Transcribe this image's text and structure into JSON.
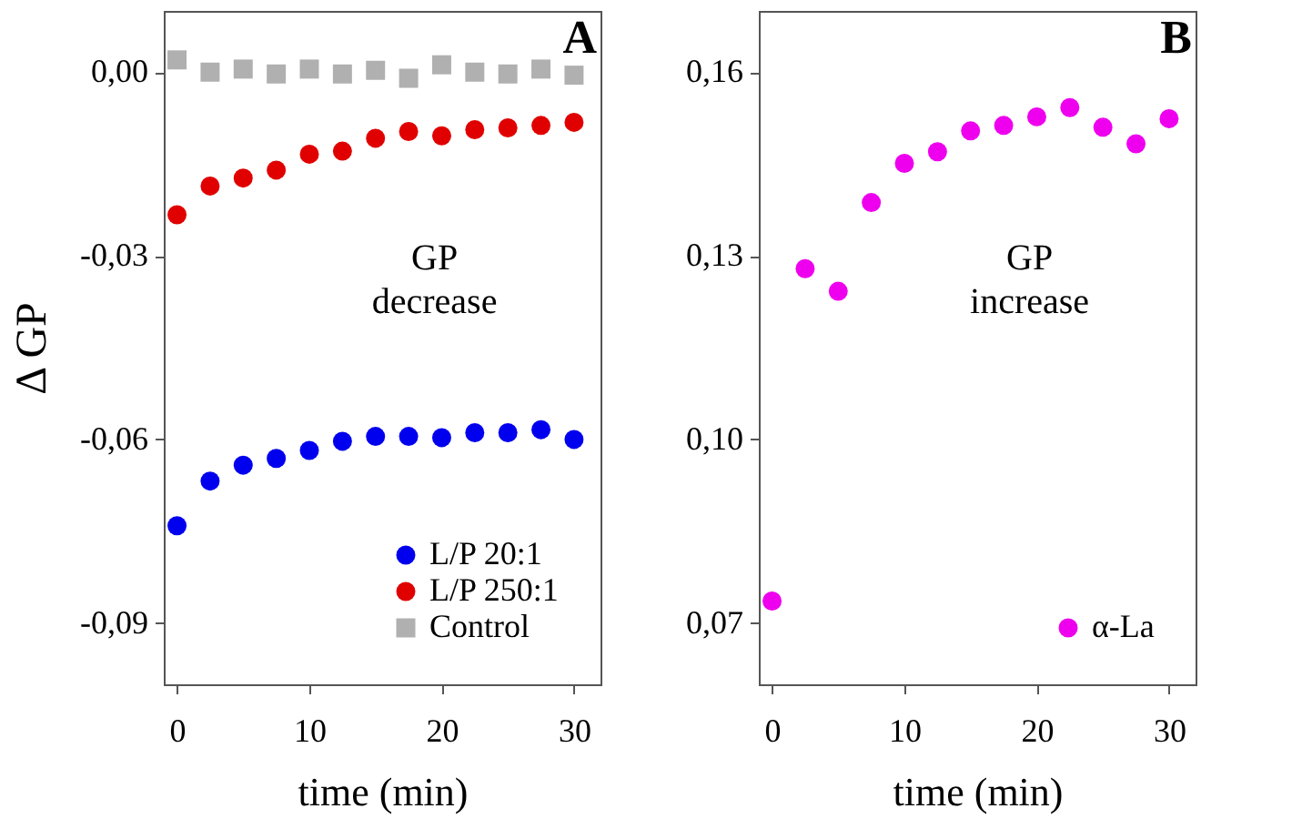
{
  "chart_data": [
    {
      "type": "scatter",
      "xlabel": "time (min)",
      "ylabel": "Δ GP",
      "x": [
        0,
        2.5,
        5,
        7.5,
        10,
        12.5,
        15,
        17.5,
        20,
        22.5,
        25,
        27.5,
        30
      ],
      "series": [
        {
          "name": "L/P 20:1",
          "color": "#0000ee",
          "marker": "circle",
          "values": [
            -0.0741,
            -0.0668,
            -0.0642,
            -0.0631,
            -0.0618,
            -0.0603,
            -0.0595,
            -0.0595,
            -0.0597,
            -0.0589,
            -0.0589,
            -0.0584,
            -0.06
          ]
        },
        {
          "name": "L/P 250:1",
          "color": "#e00000",
          "marker": "circle",
          "values": [
            -0.0233,
            -0.0186,
            -0.0173,
            -0.016,
            -0.0134,
            -0.0129,
            -0.0108,
            -0.0097,
            -0.0104,
            -0.0094,
            -0.0091,
            -0.0087,
            -0.0082
          ]
        },
        {
          "name": "Control",
          "color": "#b0b0b0",
          "marker": "square",
          "values": [
            0.002,
            0.0,
            0.0005,
            -0.0003,
            0.0005,
            -0.0003,
            0.0003,
            -0.001,
            0.0012,
            0.0,
            -0.0003,
            0.0005,
            -0.0005
          ]
        }
      ],
      "xlim": [
        -1,
        32
      ],
      "xticks": [
        0,
        10,
        20,
        30
      ],
      "ylim": [
        -0.1,
        0.01
      ],
      "yticks": [
        {
          "value": 0,
          "label": "0,00"
        },
        {
          "value": -0.03,
          "label": "-0,03"
        },
        {
          "value": -0.06,
          "label": "-0,06"
        },
        {
          "value": -0.09,
          "label": "-0,09"
        }
      ],
      "annotations": [
        "A",
        "GP\ndecrease"
      ],
      "legend": "bottom right",
      "grid": false
    },
    {
      "type": "scatter",
      "xlabel": "time (min)",
      "x": [
        0,
        2.5,
        5,
        7.5,
        10,
        12.5,
        15,
        17.5,
        20,
        22.5,
        25,
        27.5,
        30
      ],
      "series": [
        {
          "name": "α-La",
          "color": "#ee00ee",
          "marker": "circle",
          "values": [
            0.0736,
            0.1279,
            0.1242,
            0.1387,
            0.1451,
            0.147,
            0.1504,
            0.1513,
            0.1527,
            0.1542,
            0.151,
            0.1483,
            0.1524
          ]
        }
      ],
      "xlim": [
        -1,
        32
      ],
      "xticks": [
        0,
        10,
        20,
        30
      ],
      "ylim": [
        0.06,
        0.17
      ],
      "yticks": [
        {
          "value": 0.07,
          "label": "0,07"
        },
        {
          "value": 0.1,
          "label": "0,10"
        },
        {
          "value": 0.13,
          "label": "0,13"
        },
        {
          "value": 0.16,
          "label": "0,16"
        }
      ],
      "annotations": [
        "B",
        "GP\nincrease"
      ],
      "legend": "bottom",
      "grid": false
    }
  ]
}
